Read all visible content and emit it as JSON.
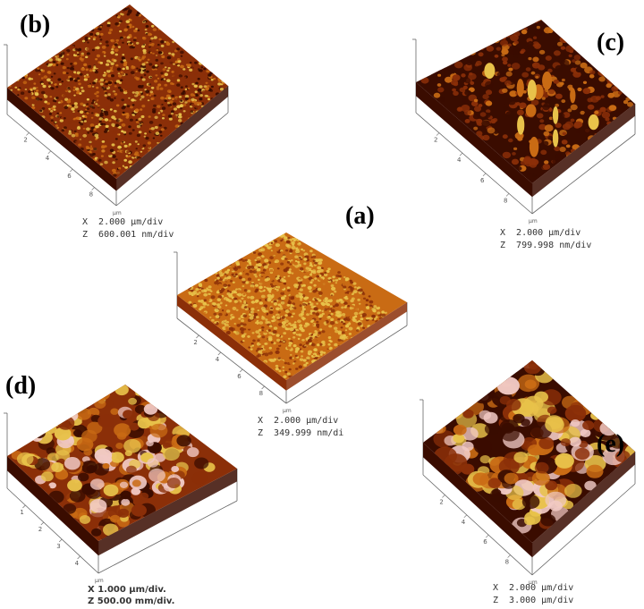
{
  "colors": {
    "dark": "#3a0c00",
    "mid": "#8b2f08",
    "light": "#c96b14",
    "highlight": "#e8c24a",
    "peak": "#f1c9c4",
    "frame": "#666666"
  },
  "panels": [
    {
      "id": "a",
      "label": "(a)",
      "x_scale": "X  2.000 µm/div",
      "z_scale": "Z  349.999 nm/di",
      "ticks": [
        "2",
        "4",
        "6",
        "8"
      ],
      "unit": "µm",
      "texture": "fine-bright"
    },
    {
      "id": "b",
      "label": "(b)",
      "x_scale": "X  2.000 µm/div",
      "z_scale": "Z  600.001 nm/div",
      "ticks": [
        "2",
        "4",
        "6",
        "8"
      ],
      "unit": "µm",
      "texture": "fine"
    },
    {
      "id": "c",
      "label": "(c)",
      "x_scale": "X  2.000 µm/div",
      "z_scale": "Z  799.998 nm/div",
      "ticks": [
        "2",
        "4",
        "6",
        "8"
      ],
      "unit": "µm",
      "texture": "dark-sparse"
    },
    {
      "id": "d",
      "label": "(d)",
      "x_scale": "X 1.000 µm/div.",
      "z_scale": "Z 500.00 mm/div.",
      "ticks": [
        "1",
        "2",
        "3",
        "4"
      ],
      "unit": "µm",
      "texture": "grains"
    },
    {
      "id": "e",
      "label": "(e)",
      "x_scale": "X  2.000 µm/div",
      "z_scale": "Z  3.000 µm/div",
      "ticks": [
        "2",
        "4",
        "6",
        "8"
      ],
      "unit": "µm",
      "texture": "rough"
    }
  ]
}
